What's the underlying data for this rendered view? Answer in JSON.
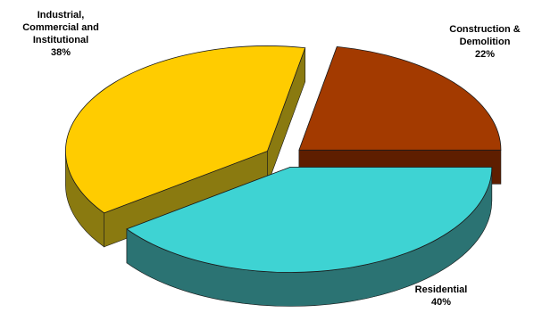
{
  "chart_data": {
    "type": "pie",
    "style": "3d-exploded",
    "slices": [
      {
        "name": "Residential",
        "label_lines": [
          "Residential"
        ],
        "value": 40,
        "value_label": "40%",
        "color": "#3ed3d3",
        "side_color": "#2b7373"
      },
      {
        "name": "Industrial, Commercial and Institutional",
        "label_lines": [
          "Industrial,",
          "Commercial and",
          "Institutional"
        ],
        "value": 38,
        "value_label": "38%",
        "color": "#ffcc00",
        "side_color": "#8a7a10"
      },
      {
        "name": "Construction & Demolition",
        "label_lines": [
          "Construction &",
          "Demolition"
        ],
        "value": 22,
        "value_label": "22%",
        "color": "#a33a00",
        "side_color": "#5e1e00"
      }
    ]
  }
}
